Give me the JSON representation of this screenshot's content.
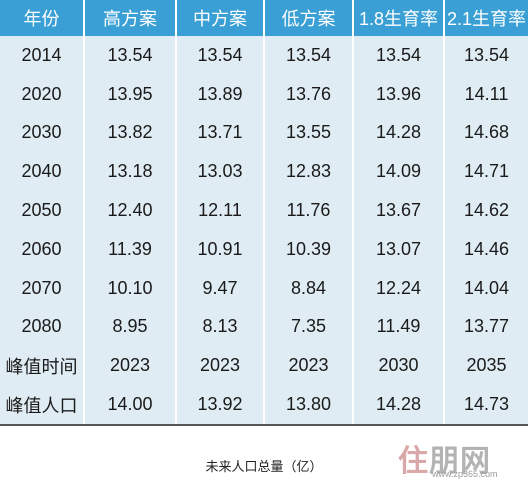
{
  "table": {
    "headers": [
      "年份",
      "高方案",
      "中方案",
      "低方案",
      "1.8生育率",
      "2.1生育率"
    ],
    "rows": [
      [
        "2014",
        "13.54",
        "13.54",
        "13.54",
        "13.54",
        "13.54"
      ],
      [
        "2020",
        "13.95",
        "13.89",
        "13.76",
        "13.96",
        "14.11"
      ],
      [
        "2030",
        "13.82",
        "13.71",
        "13.55",
        "14.28",
        "14.68"
      ],
      [
        "2040",
        "13.18",
        "13.03",
        "12.83",
        "14.09",
        "14.71"
      ],
      [
        "2050",
        "12.40",
        "12.11",
        "11.76",
        "13.67",
        "14.62"
      ],
      [
        "2060",
        "11.39",
        "10.91",
        "10.39",
        "13.07",
        "14.46"
      ],
      [
        "2070",
        "10.10",
        "9.47",
        "8.84",
        "12.24",
        "14.04"
      ],
      [
        "2080",
        "8.95",
        "8.13",
        "7.35",
        "11.49",
        "13.77"
      ],
      [
        "峰值时间",
        "2023",
        "2023",
        "2023",
        "2030",
        "2035"
      ],
      [
        "峰值人口",
        "14.00",
        "13.92",
        "13.80",
        "14.28",
        "14.73"
      ]
    ]
  },
  "caption": "未来人口总量（亿）",
  "watermark": {
    "logo_first": "住",
    "logo_rest": "朋网",
    "url": "www.zp365.com"
  },
  "colors": {
    "header_bg": "#3a9fd5",
    "body_bg": "#e0ecf3",
    "divider": "#ffffff"
  }
}
